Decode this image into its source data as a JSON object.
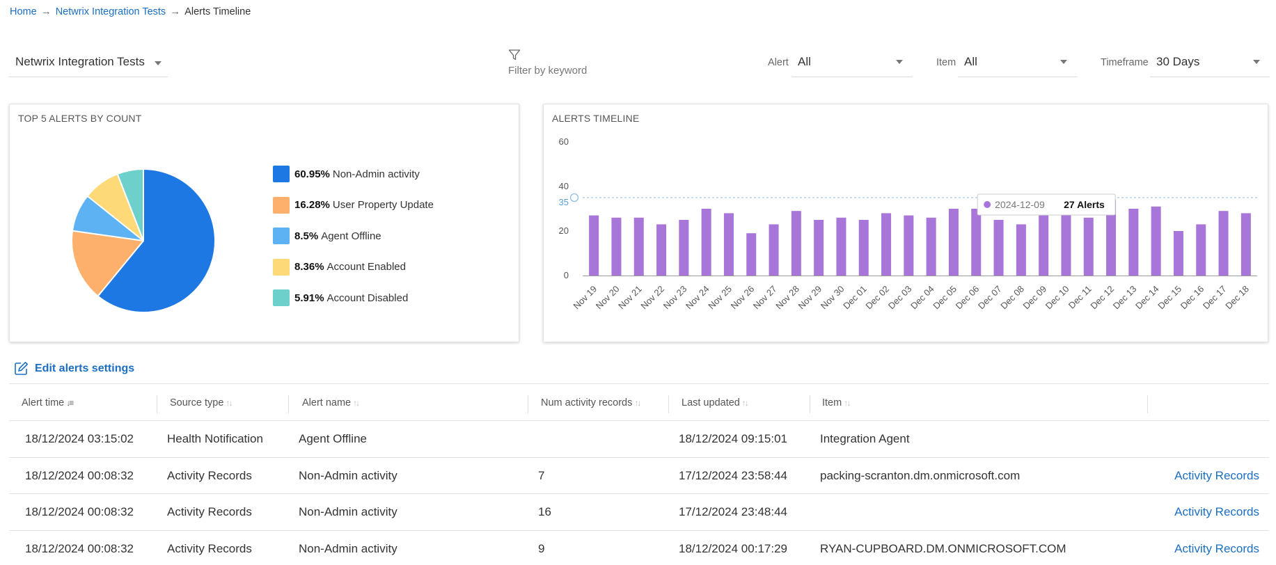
{
  "breadcrumb": {
    "home": "Home",
    "parent": "Netwrix Integration Tests",
    "current": "Alerts Timeline",
    "separator": "→"
  },
  "filters": {
    "scope": "Netwrix Integration Tests",
    "keyword_placeholder": "Filter by keyword",
    "alert_label": "Alert",
    "alert_value": "All",
    "item_label": "Item",
    "item_value": "All",
    "timeframe_label": "Timeframe",
    "timeframe_value": "30 Days"
  },
  "colors": {
    "link": "#1b6ec2",
    "bar": "#a875d9",
    "pie": [
      "#1e78e3",
      "#fdb06b",
      "#5db2f3",
      "#fdd978",
      "#6dd0cb"
    ]
  },
  "top_alerts": {
    "title": "TOP 5 ALERTS BY COUNT",
    "items": [
      {
        "pct": "60.95%",
        "name": "Non-Admin activity",
        "color": "#1e78e3",
        "value": 60.95
      },
      {
        "pct": "16.28%",
        "name": "User Property Update",
        "color": "#fdb06b",
        "value": 16.28
      },
      {
        "pct": "8.5%",
        "name": "Agent Offline",
        "color": "#5db2f3",
        "value": 8.5
      },
      {
        "pct": "8.36%",
        "name": "Account Enabled",
        "color": "#fdd978",
        "value": 8.36
      },
      {
        "pct": "5.91%",
        "name": "Account Disabled",
        "color": "#6dd0cb",
        "value": 5.91
      }
    ]
  },
  "chart_data": {
    "type": "bar",
    "title": "ALERTS TIMELINE",
    "categories": [
      "Nov 19",
      "Nov 20",
      "Nov 21",
      "Nov 22",
      "Nov 23",
      "Nov 24",
      "Nov 25",
      "Nov 26",
      "Nov 27",
      "Nov 28",
      "Nov 29",
      "Nov 30",
      "Dec 01",
      "Dec 02",
      "Dec 03",
      "Dec 04",
      "Dec 05",
      "Dec 06",
      "Dec 07",
      "Dec 08",
      "Dec 09",
      "Dec 10",
      "Dec 11",
      "Dec 12",
      "Dec 13",
      "Dec 14",
      "Dec 15",
      "Dec 16",
      "Dec 17",
      "Dec 18"
    ],
    "values": [
      27,
      26,
      26,
      23,
      25,
      30,
      28,
      19,
      23,
      29,
      25,
      26,
      25,
      28,
      27,
      26,
      30,
      30,
      25,
      23,
      27,
      32,
      26,
      34,
      30,
      31,
      20,
      23,
      29,
      28
    ],
    "ylim": [
      0,
      60
    ],
    "yticks": [
      "0",
      "20",
      "40",
      "60"
    ],
    "reference_line": {
      "value": 35,
      "label": "35"
    },
    "tooltip": {
      "date": "2024-12-09",
      "text": "27 Alerts"
    }
  },
  "edit_link": "Edit alerts settings",
  "table": {
    "headers": [
      "Alert time",
      "Source type",
      "Alert name",
      "Num activity records",
      "Last updated",
      "Item"
    ],
    "rows": [
      {
        "time": "18/12/2024 03:15:02",
        "source": "Health Notification",
        "name": "Agent Offline",
        "num": "",
        "updated": "18/12/2024 09:15:01",
        "item": "Integration Agent",
        "action": ""
      },
      {
        "time": "18/12/2024 00:08:32",
        "source": "Activity Records",
        "name": "Non-Admin activity",
        "num": "7",
        "updated": "17/12/2024 23:58:44",
        "item": "packing-scranton.dm.onmicrosoft.com",
        "action": "Activity Records"
      },
      {
        "time": "18/12/2024 00:08:32",
        "source": "Activity Records",
        "name": "Non-Admin activity",
        "num": "16",
        "updated": "17/12/2024 23:48:44",
        "item": "",
        "action": "Activity Records"
      },
      {
        "time": "18/12/2024 00:08:32",
        "source": "Activity Records",
        "name": "Non-Admin activity",
        "num": "9",
        "updated": "18/12/2024 00:17:29",
        "item": "RYAN-CUPBOARD.DM.ONMICROSOFT.COM",
        "action": "Activity Records"
      }
    ]
  }
}
